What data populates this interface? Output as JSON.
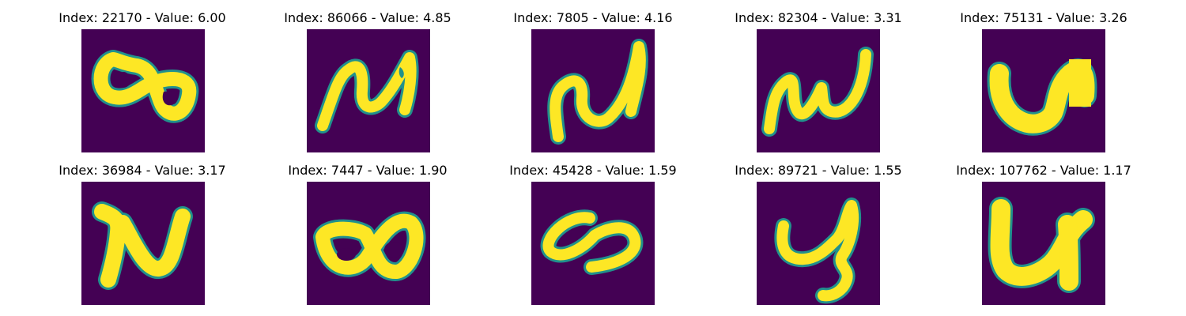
{
  "colors": {
    "background": "#440154",
    "edge": "#21918c",
    "foreground": "#fde725"
  },
  "panels": [
    {
      "index": "22170",
      "value": "6.00",
      "title": "Index: 22170 - Value: 6.00"
    },
    {
      "index": "86066",
      "value": "4.85",
      "title": "Index: 86066 - Value: 4.85"
    },
    {
      "index": "7805",
      "value": "4.16",
      "title": "Index: 7805 - Value: 4.16"
    },
    {
      "index": "82304",
      "value": "3.31",
      "title": "Index: 82304 - Value: 3.31"
    },
    {
      "index": "75131",
      "value": "3.26",
      "title": "Index: 75131 - Value: 3.26"
    },
    {
      "index": "36984",
      "value": "3.17",
      "title": "Index: 36984 - Value: 3.17"
    },
    {
      "index": "7447",
      "value": "1.90",
      "title": "Index: 7447 - Value: 1.90"
    },
    {
      "index": "45428",
      "value": "1.59",
      "title": "Index: 45428 - Value: 1.59"
    },
    {
      "index": "89721",
      "value": "1.55",
      "title": "Index: 89721 - Value: 1.55"
    },
    {
      "index": "107762",
      "value": "1.17",
      "title": "Index: 107762 - Value: 1.17"
    }
  ]
}
